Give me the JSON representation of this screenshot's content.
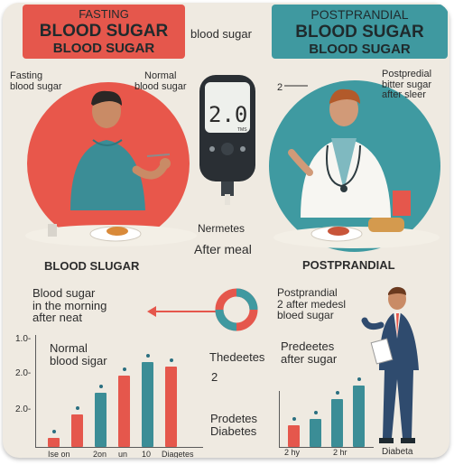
{
  "top": {
    "fasting_banner": {
      "line1": "FASTING",
      "line2": "BLOOD SUGAR",
      "line3": "BLOOD SUGAR"
    },
    "center_label": "blood sugar",
    "post_banner": {
      "line1": "POSTPRANDIAL",
      "line2": "BLOOD SUGAR",
      "line3": "BLOOD SUGAR"
    }
  },
  "left_scene": {
    "label_fasting": "Fasting\nblood sugar",
    "label_normal": "Normal\nblood sugar",
    "caption": "BLOOD SLUGAR"
  },
  "meter": {
    "reading": "2.0",
    "unit": "TMS"
  },
  "middle": {
    "line1": "Nermetes",
    "line2": "After meal"
  },
  "right_scene": {
    "label_2": "2",
    "label_post": "Postpredial\nbitter sugar\nafter sleer",
    "caption": "POSTPRANDIAL"
  },
  "lower_left": {
    "text": "Blood sugar\nin the morning\nafter neat"
  },
  "lower_right": {
    "text": "Postprandial\n2 after medesl\nbloed sugar"
  },
  "left_chart": {
    "y_ticks": [
      "1.0-",
      "2.0-",
      "2.0-"
    ],
    "bar_label": "Normal\nblood sigar",
    "x_labels": [
      "Ise on",
      "2on",
      "un",
      "10",
      "Diagetes"
    ],
    "bars": [
      {
        "value": 0.08,
        "color": "red"
      },
      {
        "value": 0.3,
        "color": "red"
      },
      {
        "value": 0.5,
        "color": "teal"
      },
      {
        "value": 0.66,
        "color": "red"
      },
      {
        "value": 0.78,
        "color": "teal"
      },
      {
        "value": 0.74,
        "color": "red"
      }
    ]
  },
  "middle_lower": {
    "thedeetes": "Thedeetes",
    "two": "2",
    "prodetes": "Prodetes\nDiabetes"
  },
  "right_chart": {
    "label": "Predeetes\nafter sugar",
    "x_labels": [
      "2 hy",
      "2 hr",
      "Diabeta"
    ],
    "bars": [
      {
        "value": 0.22,
        "color": "red"
      },
      {
        "value": 0.28,
        "color": "teal"
      },
      {
        "value": 0.48,
        "color": "teal"
      },
      {
        "value": 0.62,
        "color": "teal"
      }
    ]
  },
  "colors": {
    "red": "#e5574c",
    "teal": "#3f99a0",
    "bg": "#efeae1"
  }
}
